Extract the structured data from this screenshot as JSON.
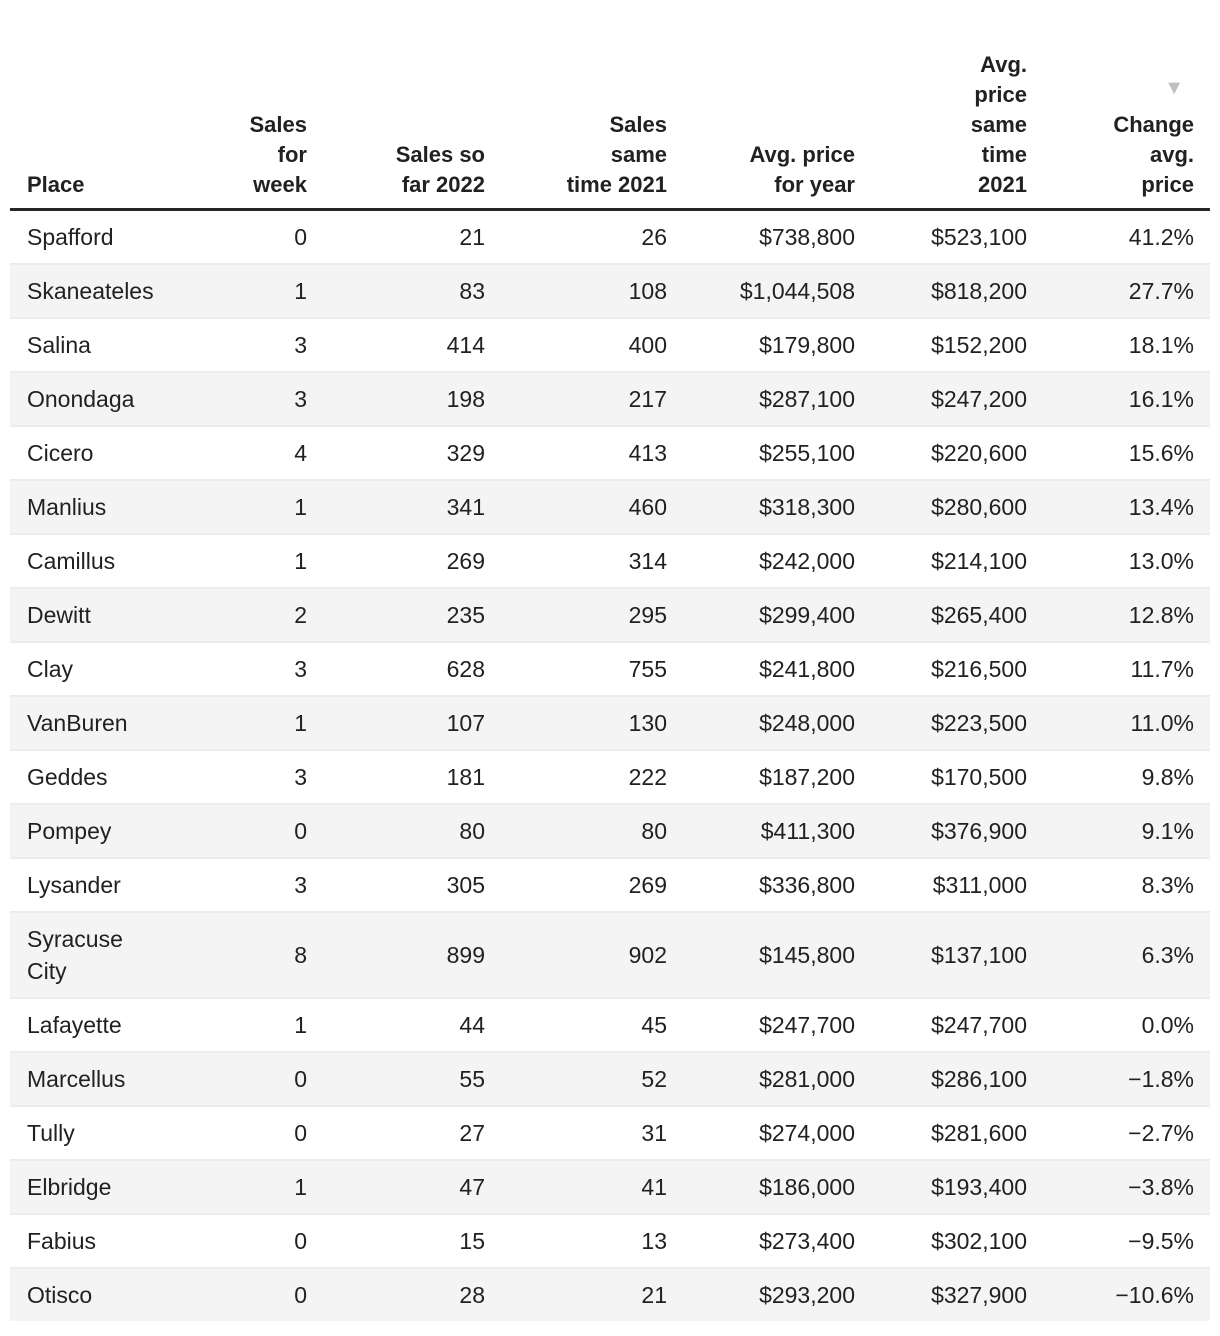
{
  "colors": {
    "text": "#212121",
    "stripe": "#f4f4f4",
    "row_border": "#ececec",
    "header_border": "#262626",
    "sort_arrow": "#bfbfbf",
    "page_bg": "#ffffff"
  },
  "chart_data": {
    "type": "table",
    "sort": {
      "column": "change_avg_price",
      "direction": "desc",
      "icon": "▼"
    },
    "columns": [
      {
        "id": "place",
        "label": "Place",
        "align": "left"
      },
      {
        "id": "sales_for_week",
        "label": "Sales\nfor\nweek",
        "align": "right"
      },
      {
        "id": "sales_so_far_2022",
        "label": "Sales so\nfar 2022",
        "align": "right"
      },
      {
        "id": "sales_same_time_2021",
        "label": "Sales\nsame\ntime 2021",
        "align": "right"
      },
      {
        "id": "avg_price_for_year",
        "label": "Avg. price\nfor year",
        "align": "right"
      },
      {
        "id": "avg_price_same_time_2021",
        "label": "Avg.\nprice\nsame\ntime\n2021",
        "align": "right"
      },
      {
        "id": "change_avg_price",
        "label": "Change\navg.\nprice",
        "align": "right",
        "sorted": "desc"
      }
    ],
    "rows": [
      [
        "Spafford",
        "0",
        "21",
        "26",
        "$738,800",
        "$523,100",
        "41.2%"
      ],
      [
        "Skaneateles",
        "1",
        "83",
        "108",
        "$1,044,508",
        "$818,200",
        "27.7%"
      ],
      [
        "Salina",
        "3",
        "414",
        "400",
        "$179,800",
        "$152,200",
        "18.1%"
      ],
      [
        "Onondaga",
        "3",
        "198",
        "217",
        "$287,100",
        "$247,200",
        "16.1%"
      ],
      [
        "Cicero",
        "4",
        "329",
        "413",
        "$255,100",
        "$220,600",
        "15.6%"
      ],
      [
        "Manlius",
        "1",
        "341",
        "460",
        "$318,300",
        "$280,600",
        "13.4%"
      ],
      [
        "Camillus",
        "1",
        "269",
        "314",
        "$242,000",
        "$214,100",
        "13.0%"
      ],
      [
        "Dewitt",
        "2",
        "235",
        "295",
        "$299,400",
        "$265,400",
        "12.8%"
      ],
      [
        "Clay",
        "3",
        "628",
        "755",
        "$241,800",
        "$216,500",
        "11.7%"
      ],
      [
        "VanBuren",
        "1",
        "107",
        "130",
        "$248,000",
        "$223,500",
        "11.0%"
      ],
      [
        "Geddes",
        "3",
        "181",
        "222",
        "$187,200",
        "$170,500",
        "9.8%"
      ],
      [
        "Pompey",
        "0",
        "80",
        "80",
        "$411,300",
        "$376,900",
        "9.1%"
      ],
      [
        "Lysander",
        "3",
        "305",
        "269",
        "$336,800",
        "$311,000",
        "8.3%"
      ],
      [
        "Syracuse\nCity",
        "8",
        "899",
        "902",
        "$145,800",
        "$137,100",
        "6.3%"
      ],
      [
        "Lafayette",
        "1",
        "44",
        "45",
        "$247,700",
        "$247,700",
        "0.0%"
      ],
      [
        "Marcellus",
        "0",
        "55",
        "52",
        "$281,000",
        "$286,100",
        "−1.8%"
      ],
      [
        "Tully",
        "0",
        "27",
        "31",
        "$274,000",
        "$281,600",
        "−2.7%"
      ],
      [
        "Elbridge",
        "1",
        "47",
        "41",
        "$186,000",
        "$193,400",
        "−3.8%"
      ],
      [
        "Fabius",
        "0",
        "15",
        "13",
        "$273,400",
        "$302,100",
        "−9.5%"
      ],
      [
        "Otisco",
        "0",
        "28",
        "21",
        "$293,200",
        "$327,900",
        "−10.6%"
      ]
    ]
  }
}
